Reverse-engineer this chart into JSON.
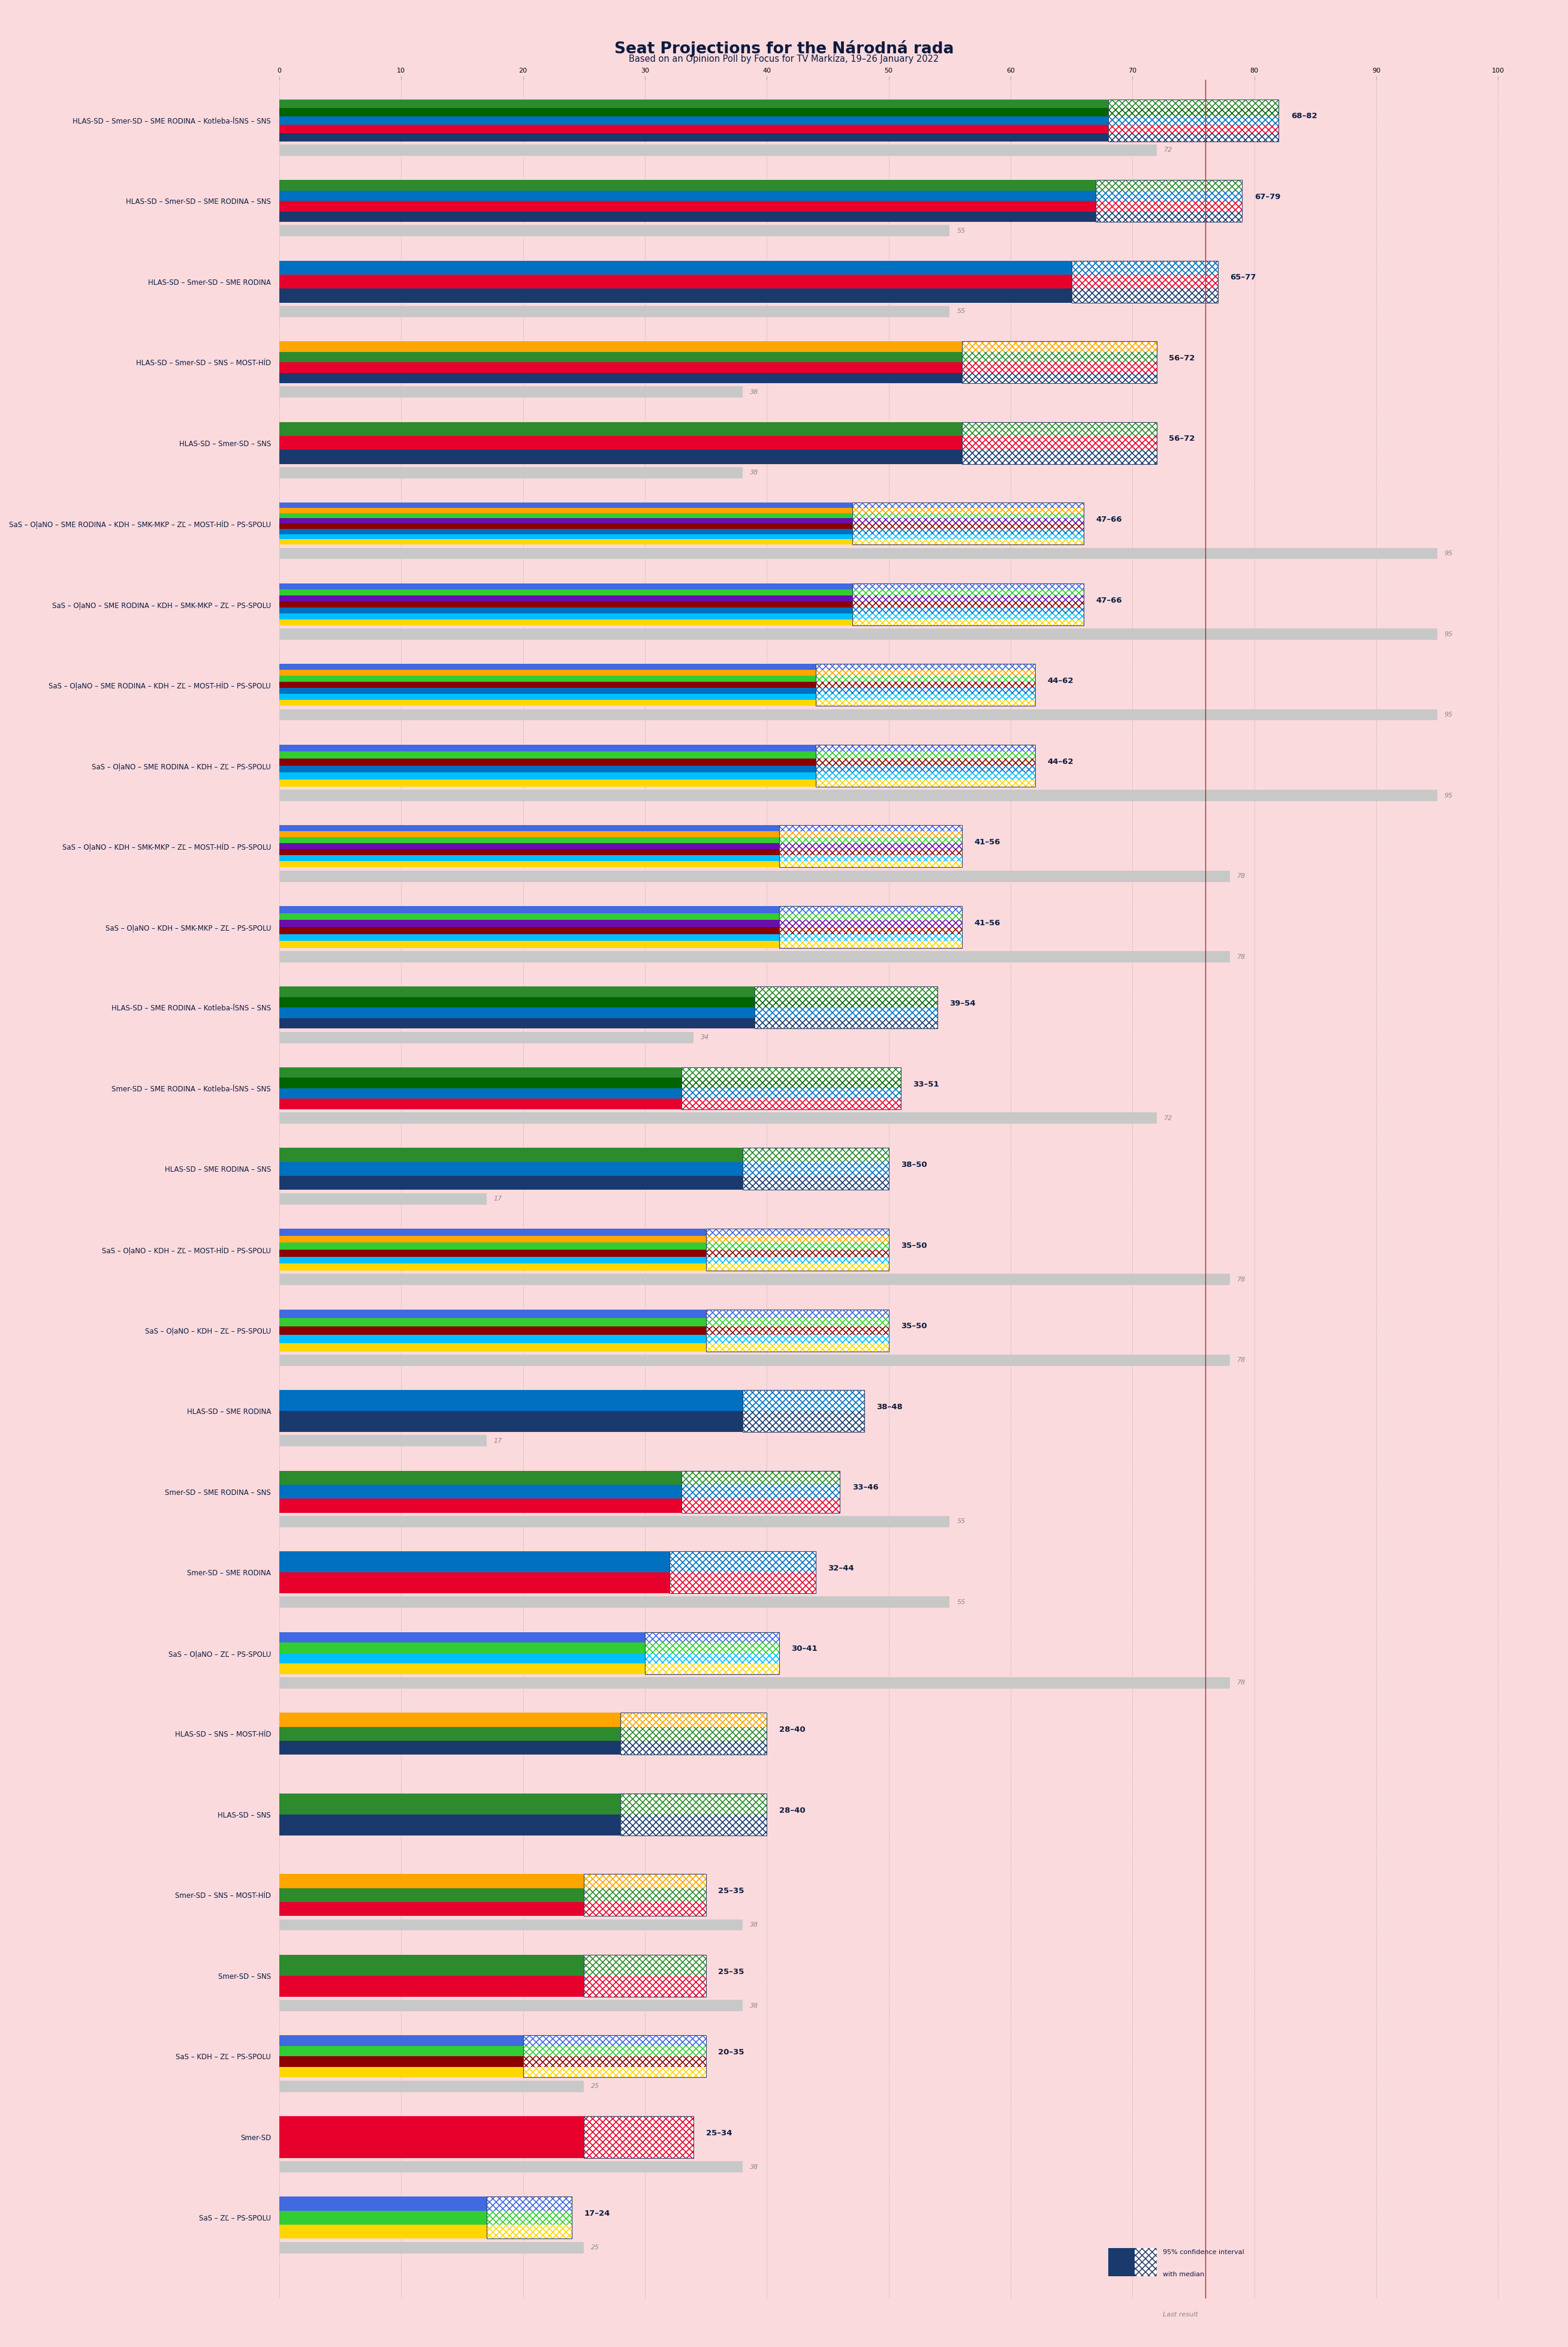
{
  "title": "Seat Projections for the Národná rada",
  "subtitle": "Based on an Opinion Poll by Focus for TV Markíza, 19–26 January 2022",
  "bg_color": "#FADADD",
  "title_color": "#0D1B3E",
  "majority": 76,
  "coalitions": [
    {
      "label": "HLAS-SD – Smer-SD – SME RODINA – Kotleba-ĺSNS – SNS",
      "low": 68,
      "high": 82,
      "last": 72,
      "colors": [
        "#1a3a6e",
        "#e8002d",
        "#0070c0",
        "#006400",
        "#2d8b2d"
      ]
    },
    {
      "label": "HLAS-SD – Smer-SD – SME RODINA – SNS",
      "low": 67,
      "high": 79,
      "last": 55,
      "colors": [
        "#1a3a6e",
        "#e8002d",
        "#0070c0",
        "#2d8b2d"
      ]
    },
    {
      "label": "HLAS-SD – Smer-SD – SME RODINA",
      "low": 65,
      "high": 77,
      "last": 55,
      "colors": [
        "#1a3a6e",
        "#e8002d",
        "#0070c0"
      ]
    },
    {
      "label": "HLAS-SD – Smer-SD – SNS – MOST-HÍD",
      "low": 56,
      "high": 72,
      "last": 38,
      "colors": [
        "#1a3a6e",
        "#e8002d",
        "#2d8b2d",
        "#FFA500"
      ]
    },
    {
      "label": "HLAS-SD – Smer-SD – SNS",
      "low": 56,
      "high": 72,
      "last": 38,
      "colors": [
        "#1a3a6e",
        "#e8002d",
        "#2d8b2d"
      ]
    },
    {
      "label": "SaS – OļaNO – SME RODINA – KDH – SMK-MKP – ZĽ – MOST-HÍD – PS-SPOLU",
      "low": 47,
      "high": 66,
      "last": 95,
      "colors": [
        "#FFD700",
        "#00BFFF",
        "#0070c0",
        "#8B0000",
        "#6A0DAD",
        "#32CD32",
        "#FFA500",
        "#4169E1"
      ]
    },
    {
      "label": "SaS – OļaNO – SME RODINA – KDH – SMK-MKP – ZĽ – PS-SPOLU",
      "low": 47,
      "high": 66,
      "last": 95,
      "colors": [
        "#FFD700",
        "#00BFFF",
        "#0070c0",
        "#8B0000",
        "#6A0DAD",
        "#32CD32",
        "#4169E1"
      ]
    },
    {
      "label": "SaS – OļaNO – SME RODINA – KDH – ZĽ – MOST-HÍD – PS-SPOLU",
      "low": 44,
      "high": 62,
      "last": 95,
      "colors": [
        "#FFD700",
        "#00BFFF",
        "#0070c0",
        "#8B0000",
        "#32CD32",
        "#FFA500",
        "#4169E1"
      ]
    },
    {
      "label": "SaS – OļaNO – SME RODINA – KDH – ZĽ – PS-SPOLU",
      "low": 44,
      "high": 62,
      "last": 95,
      "colors": [
        "#FFD700",
        "#00BFFF",
        "#0070c0",
        "#8B0000",
        "#32CD32",
        "#4169E1"
      ]
    },
    {
      "label": "SaS – OļaNO – KDH – SMK-MKP – ZĽ – MOST-HÍD – PS-SPOLU",
      "low": 41,
      "high": 56,
      "last": 78,
      "colors": [
        "#FFD700",
        "#00BFFF",
        "#8B0000",
        "#6A0DAD",
        "#32CD32",
        "#FFA500",
        "#4169E1"
      ]
    },
    {
      "label": "SaS – OļaNO – KDH – SMK-MKP – ZĽ – PS-SPOLU",
      "low": 41,
      "high": 56,
      "last": 78,
      "colors": [
        "#FFD700",
        "#00BFFF",
        "#8B0000",
        "#6A0DAD",
        "#32CD32",
        "#4169E1"
      ]
    },
    {
      "label": "HLAS-SD – SME RODINA – Kotleba-ĺSNS – SNS",
      "low": 39,
      "high": 54,
      "last": 34,
      "colors": [
        "#1a3a6e",
        "#0070c0",
        "#006400",
        "#2d8b2d"
      ]
    },
    {
      "label": "Smer-SD – SME RODINA – Kotleba-ĺSNS – SNS",
      "low": 33,
      "high": 51,
      "last": 72,
      "colors": [
        "#e8002d",
        "#0070c0",
        "#006400",
        "#2d8b2d"
      ]
    },
    {
      "label": "HLAS-SD – SME RODINA – SNS",
      "low": 38,
      "high": 50,
      "last": 17,
      "colors": [
        "#1a3a6e",
        "#0070c0",
        "#2d8b2d"
      ]
    },
    {
      "label": "SaS – OļaNO – KDH – ZĽ – MOST-HÍD – PS-SPOLU",
      "low": 35,
      "high": 50,
      "last": 78,
      "colors": [
        "#FFD700",
        "#00BFFF",
        "#8B0000",
        "#32CD32",
        "#FFA500",
        "#4169E1"
      ]
    },
    {
      "label": "SaS – OļaNO – KDH – ZĽ – PS-SPOLU",
      "low": 35,
      "high": 50,
      "last": 78,
      "colors": [
        "#FFD700",
        "#00BFFF",
        "#8B0000",
        "#32CD32",
        "#4169E1"
      ]
    },
    {
      "label": "HLAS-SD – SME RODINA",
      "low": 38,
      "high": 48,
      "last": 17,
      "colors": [
        "#1a3a6e",
        "#0070c0"
      ]
    },
    {
      "label": "Smer-SD – SME RODINA – SNS",
      "low": 33,
      "high": 46,
      "last": 55,
      "colors": [
        "#e8002d",
        "#0070c0",
        "#2d8b2d"
      ]
    },
    {
      "label": "Smer-SD – SME RODINA",
      "low": 32,
      "high": 44,
      "last": 55,
      "colors": [
        "#e8002d",
        "#0070c0"
      ]
    },
    {
      "label": "SaS – OļaNO – ZĽ – PS-SPOLU",
      "low": 30,
      "high": 41,
      "last": 78,
      "colors": [
        "#FFD700",
        "#00BFFF",
        "#32CD32",
        "#4169E1"
      ]
    },
    {
      "label": "HLAS-SD – SNS – MOST-HÍD",
      "low": 28,
      "high": 40,
      "last": 0,
      "colors": [
        "#1a3a6e",
        "#2d8b2d",
        "#FFA500"
      ]
    },
    {
      "label": "HLAS-SD – SNS",
      "low": 28,
      "high": 40,
      "last": 0,
      "colors": [
        "#1a3a6e",
        "#2d8b2d"
      ]
    },
    {
      "label": "Smer-SD – SNS – MOST-HÍD",
      "low": 25,
      "high": 35,
      "last": 38,
      "colors": [
        "#e8002d",
        "#2d8b2d",
        "#FFA500"
      ]
    },
    {
      "label": "Smer-SD – SNS",
      "low": 25,
      "high": 35,
      "last": 38,
      "colors": [
        "#e8002d",
        "#2d8b2d"
      ]
    },
    {
      "label": "SaS – KDH – ZĽ – PS-SPOLU",
      "low": 20,
      "high": 35,
      "last": 25,
      "colors": [
        "#FFD700",
        "#8B0000",
        "#32CD32",
        "#4169E1"
      ]
    },
    {
      "label": "Smer-SD",
      "low": 25,
      "high": 34,
      "last": 38,
      "colors": [
        "#e8002d"
      ]
    },
    {
      "label": "SaS – ZĽ – PS-SPOLU",
      "low": 17,
      "high": 24,
      "last": 25,
      "colors": [
        "#FFD700",
        "#32CD32",
        "#4169E1"
      ]
    }
  ]
}
